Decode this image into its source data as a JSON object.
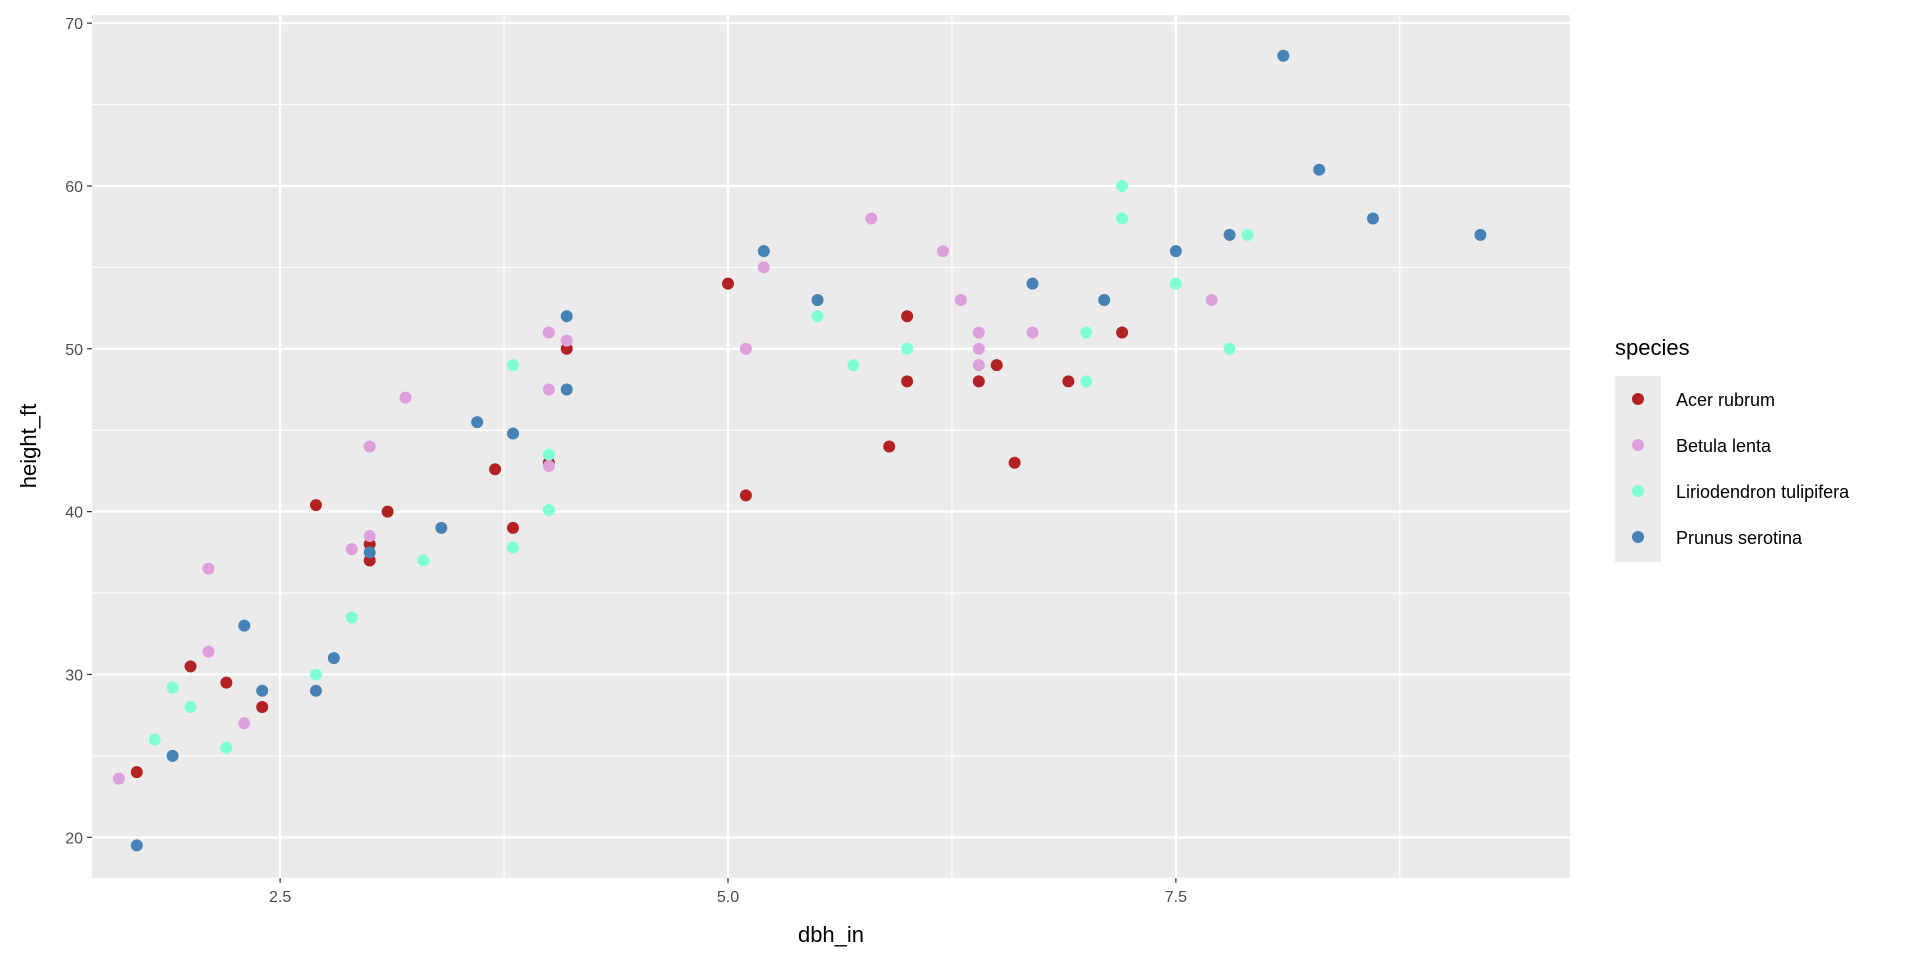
{
  "chart_data": {
    "type": "scatter",
    "title": "",
    "xlabel": "dbh_in",
    "ylabel": "height_ft",
    "xlim": [
      1.45,
      9.7
    ],
    "ylim": [
      17.5,
      70.5
    ],
    "x_major_ticks": [
      2.5,
      5.0,
      7.5
    ],
    "x_tick_labels": [
      "2.5",
      "5.0",
      "7.5"
    ],
    "x_minor_ticks": [
      3.75,
      6.25,
      8.75
    ],
    "y_major_ticks": [
      20,
      30,
      40,
      50,
      60,
      70
    ],
    "y_tick_labels": [
      "20",
      "30",
      "40",
      "50",
      "60",
      "70"
    ],
    "y_minor_ticks": [
      25,
      35,
      45,
      55,
      65
    ],
    "grid": true,
    "panel_background": "#ebebeb",
    "grid_color": "#ffffff",
    "legend": {
      "title": "species",
      "position": "right"
    },
    "series": [
      {
        "name": "Acer rubrum",
        "color": "#b22222",
        "points": [
          [
            1.7,
            24.0
          ],
          [
            2.0,
            30.5
          ],
          [
            2.2,
            29.5
          ],
          [
            2.4,
            28.0
          ],
          [
            2.7,
            40.4
          ],
          [
            3.0,
            38.0
          ],
          [
            3.0,
            37.0
          ],
          [
            3.1,
            40.0
          ],
          [
            3.7,
            42.6
          ],
          [
            3.8,
            39.0
          ],
          [
            4.0,
            43.0
          ],
          [
            4.1,
            50.0
          ],
          [
            5.0,
            54.0
          ],
          [
            5.1,
            41.0
          ],
          [
            5.9,
            44.0
          ],
          [
            6.0,
            52.0
          ],
          [
            6.0,
            48.0
          ],
          [
            6.4,
            48.0
          ],
          [
            6.5,
            49.0
          ],
          [
            6.6,
            43.0
          ],
          [
            6.9,
            48.0
          ],
          [
            7.2,
            51.0
          ]
        ]
      },
      {
        "name": "Betula lenta",
        "color": "#dda0dd",
        "points": [
          [
            1.6,
            23.6
          ],
          [
            2.1,
            36.5
          ],
          [
            2.1,
            31.4
          ],
          [
            2.3,
            27.0
          ],
          [
            2.9,
            37.7
          ],
          [
            3.0,
            44.0
          ],
          [
            3.0,
            38.5
          ],
          [
            3.2,
            47.0
          ],
          [
            4.0,
            51.0
          ],
          [
            4.0,
            47.5
          ],
          [
            4.0,
            42.8
          ],
          [
            4.1,
            50.5
          ],
          [
            5.1,
            50.0
          ],
          [
            5.2,
            55.0
          ],
          [
            5.8,
            58.0
          ],
          [
            6.2,
            56.0
          ],
          [
            6.3,
            53.0
          ],
          [
            6.4,
            51.0
          ],
          [
            6.4,
            50.0
          ],
          [
            6.4,
            49.0
          ],
          [
            6.7,
            51.0
          ],
          [
            7.7,
            53.0
          ]
        ]
      },
      {
        "name": "Liriodendron tulipifera",
        "color": "#7fffd4",
        "points": [
          [
            1.8,
            26.0
          ],
          [
            1.9,
            29.2
          ],
          [
            2.0,
            28.0
          ],
          [
            2.2,
            25.5
          ],
          [
            2.7,
            30.0
          ],
          [
            2.9,
            33.5
          ],
          [
            3.3,
            37.0
          ],
          [
            3.8,
            49.0
          ],
          [
            3.8,
            37.8
          ],
          [
            4.0,
            43.5
          ],
          [
            4.0,
            40.1
          ],
          [
            5.5,
            52.0
          ],
          [
            5.7,
            49.0
          ],
          [
            6.0,
            50.0
          ],
          [
            7.0,
            51.0
          ],
          [
            7.0,
            48.0
          ],
          [
            7.2,
            60.0
          ],
          [
            7.2,
            58.0
          ],
          [
            7.5,
            54.0
          ],
          [
            7.8,
            50.0
          ],
          [
            7.9,
            57.0
          ]
        ]
      },
      {
        "name": "Prunus serotina",
        "color": "#4682b4",
        "points": [
          [
            1.7,
            19.5
          ],
          [
            1.9,
            25.0
          ],
          [
            2.3,
            33.0
          ],
          [
            2.4,
            29.0
          ],
          [
            2.7,
            29.0
          ],
          [
            2.8,
            31.0
          ],
          [
            3.0,
            37.5
          ],
          [
            3.4,
            39.0
          ],
          [
            3.6,
            45.5
          ],
          [
            3.8,
            44.8
          ],
          [
            4.1,
            52.0
          ],
          [
            4.1,
            47.5
          ],
          [
            5.2,
            56.0
          ],
          [
            5.5,
            53.0
          ],
          [
            6.7,
            54.0
          ],
          [
            7.1,
            53.0
          ],
          [
            7.5,
            56.0
          ],
          [
            7.8,
            57.0
          ],
          [
            8.1,
            68.0
          ],
          [
            8.3,
            61.0
          ],
          [
            8.6,
            58.0
          ],
          [
            9.2,
            57.0
          ]
        ]
      }
    ]
  }
}
